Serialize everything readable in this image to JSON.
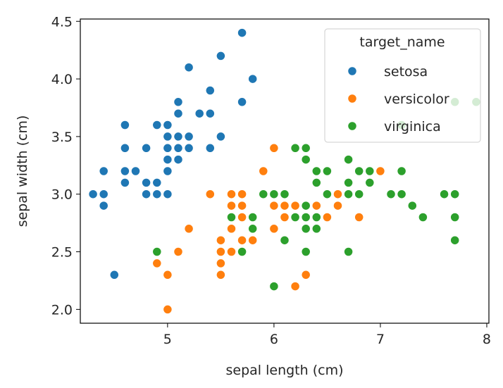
{
  "chart_data": {
    "type": "scatter",
    "title": "",
    "xlabel": "sepal length (cm)",
    "ylabel": "sepal width (cm)",
    "xlim": [
      4.18,
      8.02
    ],
    "ylim": [
      1.88,
      4.52
    ],
    "xticks": [
      5,
      6,
      7,
      8
    ],
    "yticks": [
      2.0,
      2.5,
      3.0,
      3.5,
      4.0,
      4.5
    ],
    "grid": false,
    "legend": {
      "title": "target_name",
      "placement": "top-right"
    },
    "series": [
      {
        "name": "setosa",
        "color": "#1f77b4",
        "points": [
          [
            5.1,
            3.5
          ],
          [
            4.9,
            3.0
          ],
          [
            4.7,
            3.2
          ],
          [
            4.6,
            3.1
          ],
          [
            5.0,
            3.6
          ],
          [
            5.4,
            3.9
          ],
          [
            4.6,
            3.4
          ],
          [
            5.0,
            3.4
          ],
          [
            4.4,
            2.9
          ],
          [
            4.9,
            3.1
          ],
          [
            5.4,
            3.7
          ],
          [
            4.8,
            3.4
          ],
          [
            4.8,
            3.0
          ],
          [
            4.3,
            3.0
          ],
          [
            5.8,
            4.0
          ],
          [
            5.7,
            4.4
          ],
          [
            5.4,
            3.9
          ],
          [
            5.1,
            3.5
          ],
          [
            5.7,
            3.8
          ],
          [
            5.1,
            3.8
          ],
          [
            5.4,
            3.4
          ],
          [
            5.1,
            3.7
          ],
          [
            4.6,
            3.6
          ],
          [
            5.1,
            3.3
          ],
          [
            4.8,
            3.4
          ],
          [
            5.0,
            3.0
          ],
          [
            5.0,
            3.4
          ],
          [
            5.2,
            3.5
          ],
          [
            5.2,
            3.4
          ],
          [
            4.7,
            3.2
          ],
          [
            4.8,
            3.1
          ],
          [
            5.4,
            3.4
          ],
          [
            5.2,
            4.1
          ],
          [
            5.5,
            4.2
          ],
          [
            4.9,
            3.1
          ],
          [
            5.0,
            3.2
          ],
          [
            5.5,
            3.5
          ],
          [
            4.9,
            3.6
          ],
          [
            4.4,
            3.0
          ],
          [
            5.1,
            3.4
          ],
          [
            5.0,
            3.5
          ],
          [
            4.5,
            2.3
          ],
          [
            4.4,
            3.2
          ],
          [
            5.0,
            3.5
          ],
          [
            5.1,
            3.8
          ],
          [
            4.8,
            3.0
          ],
          [
            5.1,
            3.8
          ],
          [
            4.6,
            3.2
          ],
          [
            5.3,
            3.7
          ],
          [
            5.0,
            3.3
          ]
        ]
      },
      {
        "name": "versicolor",
        "color": "#ff7f0e",
        "points": [
          [
            7.0,
            3.2
          ],
          [
            6.4,
            3.2
          ],
          [
            6.9,
            3.1
          ],
          [
            5.5,
            2.3
          ],
          [
            6.5,
            2.8
          ],
          [
            5.7,
            2.8
          ],
          [
            6.3,
            3.3
          ],
          [
            4.9,
            2.4
          ],
          [
            6.6,
            2.9
          ],
          [
            5.2,
            2.7
          ],
          [
            5.0,
            2.0
          ],
          [
            5.9,
            3.0
          ],
          [
            6.0,
            2.2
          ],
          [
            6.1,
            2.9
          ],
          [
            5.6,
            2.9
          ],
          [
            6.7,
            3.1
          ],
          [
            5.6,
            3.0
          ],
          [
            5.8,
            2.7
          ],
          [
            6.2,
            2.2
          ],
          [
            5.6,
            2.5
          ],
          [
            5.9,
            3.2
          ],
          [
            6.1,
            2.8
          ],
          [
            6.3,
            2.5
          ],
          [
            6.1,
            2.8
          ],
          [
            6.4,
            2.9
          ],
          [
            6.6,
            3.0
          ],
          [
            6.8,
            2.8
          ],
          [
            6.7,
            3.0
          ],
          [
            6.0,
            2.9
          ],
          [
            5.7,
            2.6
          ],
          [
            5.5,
            2.4
          ],
          [
            5.5,
            2.4
          ],
          [
            5.8,
            2.7
          ],
          [
            6.0,
            2.7
          ],
          [
            5.4,
            3.0
          ],
          [
            6.0,
            3.4
          ],
          [
            6.7,
            3.1
          ],
          [
            6.3,
            2.3
          ],
          [
            5.6,
            3.0
          ],
          [
            5.5,
            2.5
          ],
          [
            5.5,
            2.6
          ],
          [
            6.1,
            3.0
          ],
          [
            5.8,
            2.6
          ],
          [
            5.0,
            2.3
          ],
          [
            5.6,
            2.7
          ],
          [
            5.7,
            3.0
          ],
          [
            5.7,
            2.9
          ],
          [
            6.2,
            2.9
          ],
          [
            5.1,
            2.5
          ],
          [
            5.7,
            2.8
          ]
        ]
      },
      {
        "name": "virginica",
        "color": "#2ca02c",
        "points": [
          [
            6.3,
            3.3
          ],
          [
            5.8,
            2.7
          ],
          [
            7.1,
            3.0
          ],
          [
            6.3,
            2.9
          ],
          [
            6.5,
            3.0
          ],
          [
            7.6,
            3.0
          ],
          [
            4.9,
            2.5
          ],
          [
            7.3,
            2.9
          ],
          [
            6.7,
            2.5
          ],
          [
            7.2,
            3.6
          ],
          [
            6.5,
            3.2
          ],
          [
            6.4,
            2.7
          ],
          [
            6.8,
            3.0
          ],
          [
            5.7,
            2.5
          ],
          [
            5.8,
            2.8
          ],
          [
            6.4,
            3.2
          ],
          [
            6.5,
            3.0
          ],
          [
            7.7,
            3.8
          ],
          [
            7.7,
            2.6
          ],
          [
            6.0,
            2.2
          ],
          [
            6.9,
            3.2
          ],
          [
            5.6,
            2.8
          ],
          [
            7.7,
            2.8
          ],
          [
            6.3,
            2.7
          ],
          [
            6.7,
            3.3
          ],
          [
            7.2,
            3.2
          ],
          [
            6.2,
            2.8
          ],
          [
            6.1,
            3.0
          ],
          [
            6.4,
            2.8
          ],
          [
            7.2,
            3.0
          ],
          [
            7.4,
            2.8
          ],
          [
            7.9,
            3.8
          ],
          [
            6.4,
            2.8
          ],
          [
            6.3,
            2.8
          ],
          [
            6.1,
            2.6
          ],
          [
            7.7,
            3.0
          ],
          [
            6.3,
            3.4
          ],
          [
            6.4,
            3.1
          ],
          [
            6.0,
            3.0
          ],
          [
            6.9,
            3.1
          ],
          [
            6.7,
            3.1
          ],
          [
            6.9,
            3.1
          ],
          [
            5.8,
            2.7
          ],
          [
            6.8,
            3.2
          ],
          [
            6.7,
            3.3
          ],
          [
            6.7,
            3.0
          ],
          [
            6.3,
            2.5
          ],
          [
            6.5,
            3.0
          ],
          [
            6.2,
            3.4
          ],
          [
            5.9,
            3.0
          ]
        ]
      }
    ]
  }
}
